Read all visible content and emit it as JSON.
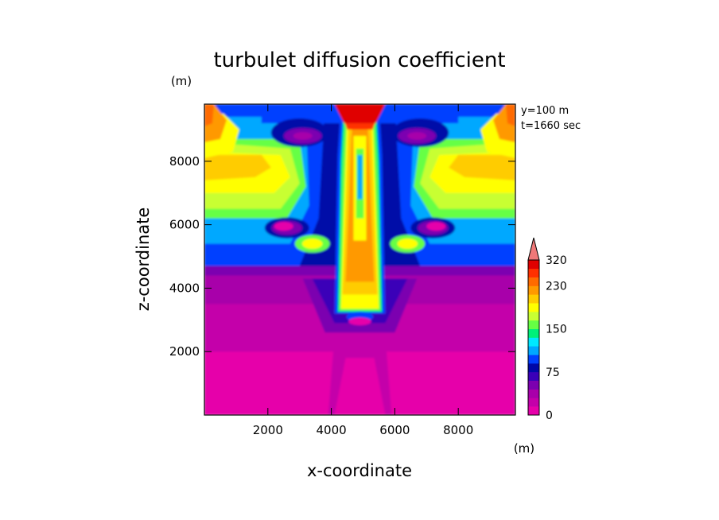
{
  "chart_data": {
    "type": "heatmap",
    "title": "turbulet diffusion coefficient",
    "xlabel": "x-coordinate",
    "ylabel": "z-coordinate",
    "x_unit": "(m)",
    "y_unit": "(m)",
    "annotations": [
      "y=100 m",
      "t=1660 sec"
    ],
    "xlim": [
      0,
      9800
    ],
    "ylim": [
      0,
      9800
    ],
    "x_ticks": [
      2000,
      4000,
      6000,
      8000
    ],
    "y_ticks": [
      2000,
      4000,
      6000,
      8000
    ],
    "x_tick_labels": [
      "2000",
      "4000",
      "6000",
      "8000"
    ],
    "y_tick_labels": [
      "2000",
      "4000",
      "6000",
      "8000"
    ],
    "colorbar": {
      "levels": [
        0,
        15,
        30,
        45,
        60,
        75,
        90,
        105,
        120,
        135,
        150,
        165,
        180,
        195,
        210,
        230,
        260,
        290,
        320
      ],
      "tick_values": [
        0,
        75,
        150,
        230,
        320
      ],
      "tick_labels": [
        "0",
        "75",
        "150",
        "230",
        "320"
      ],
      "colors": [
        "#e600aa",
        "#c400aa",
        "#a800aa",
        "#7c00b0",
        "#3a00b8",
        "#0008a8",
        "#0040ff",
        "#00a8ff",
        "#00e8ff",
        "#00f07a",
        "#66ff44",
        "#c8ff33",
        "#ffff00",
        "#ffcc00",
        "#ff9900",
        "#ff6a00",
        "#ff3000",
        "#e00000"
      ],
      "extend_color": "#f07878"
    }
  }
}
